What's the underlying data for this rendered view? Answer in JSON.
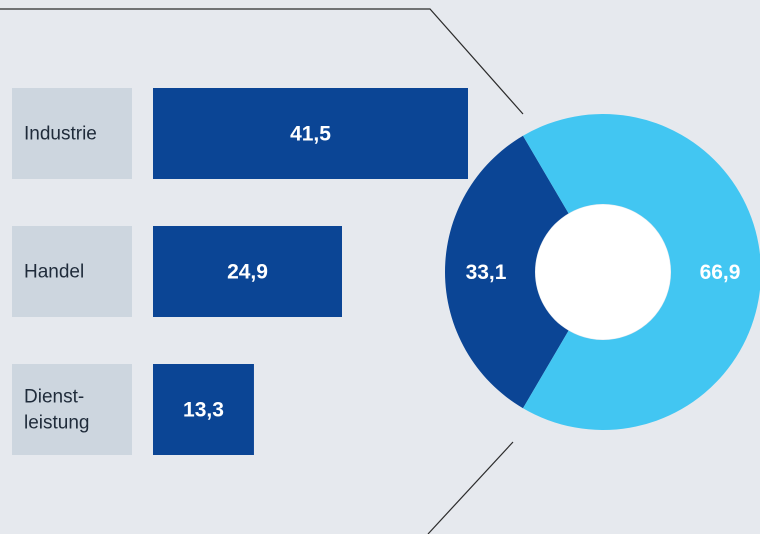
{
  "chart_data": [
    {
      "type": "bar",
      "orientation": "horizontal",
      "categories": [
        "Industrie",
        "Handel",
        "Dienst-\nleistung"
      ],
      "values": [
        41.5,
        24.9,
        13.3
      ],
      "value_labels": [
        "41,5",
        "24,9",
        "13,3"
      ],
      "colors": {
        "bar": "#0b4595",
        "label_box": "#cdd6df",
        "label_text": "#1f2b3a",
        "value_text": "#ffffff"
      }
    },
    {
      "type": "pie",
      "variant": "donut",
      "values": [
        33.1,
        66.9
      ],
      "value_labels": [
        "33,1",
        "66,9"
      ],
      "colors": [
        "#0b4595",
        "#42c6f2"
      ],
      "value_text_color": "#ffffff"
    }
  ],
  "colors": {
    "background": "#e6e9ee",
    "connector_line": "#2b2b2b"
  }
}
